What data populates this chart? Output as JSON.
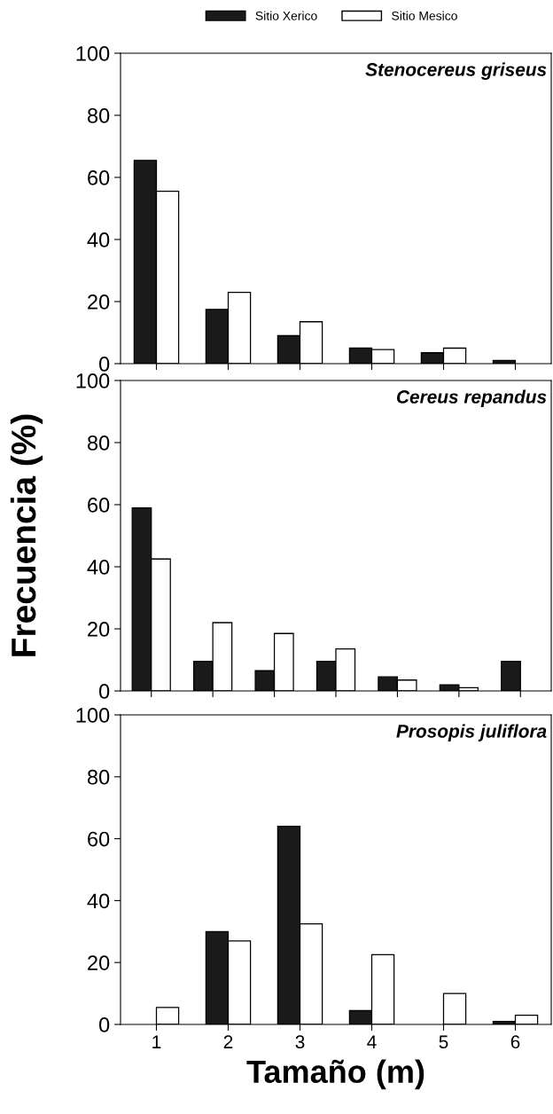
{
  "chart_data": [
    {
      "type": "bar",
      "title": "Stenocereus griseus",
      "categories": [
        null,
        null,
        null,
        null,
        null,
        null
      ],
      "legend": "top",
      "tick_labels": "y",
      "series": [
        {
          "name": "Sitio Xerico",
          "color": "#1a1a1a",
          "values": [
            65.5,
            17.5,
            9,
            5,
            3.5,
            1
          ]
        },
        {
          "name": "Sitio Mesico",
          "color": "#ffffff",
          "values": [
            55.5,
            23,
            13.5,
            4.5,
            5,
            0
          ]
        }
      ],
      "ylim": [
        0,
        100
      ],
      "yticks": [
        0,
        20,
        40,
        60,
        80,
        100
      ]
    },
    {
      "type": "bar",
      "title": "Cereus repandus",
      "ylabel": "Frecuencia (%)",
      "categories": [
        null,
        null,
        null,
        null,
        null,
        null,
        null
      ],
      "tick_labels": "y",
      "series": [
        {
          "color": "#1a1a1a",
          "values": [
            59,
            9.5,
            6.5,
            9.5,
            4.5,
            2,
            9.5
          ]
        },
        {
          "color": "#ffffff",
          "values": [
            42.5,
            22,
            18.5,
            13.5,
            3.5,
            1,
            0
          ]
        }
      ],
      "ylim": [
        0,
        100
      ],
      "yticks": [
        0,
        20,
        40,
        60,
        80,
        100
      ]
    },
    {
      "type": "bar",
      "title": "Prosopis juliflora",
      "xlabel": "Tamaño (m)",
      "categories": [
        "1",
        "2",
        "3",
        "4",
        "5",
        "6"
      ],
      "series": [
        {
          "color": "#1a1a1a",
          "values": [
            0,
            30,
            64,
            4.5,
            0,
            1
          ]
        },
        {
          "color": "#ffffff",
          "values": [
            5.5,
            27,
            32.5,
            22.5,
            10,
            3
          ]
        }
      ],
      "ylim": [
        0,
        100
      ],
      "yticks": [
        0,
        20,
        40,
        60,
        80,
        100
      ]
    }
  ]
}
